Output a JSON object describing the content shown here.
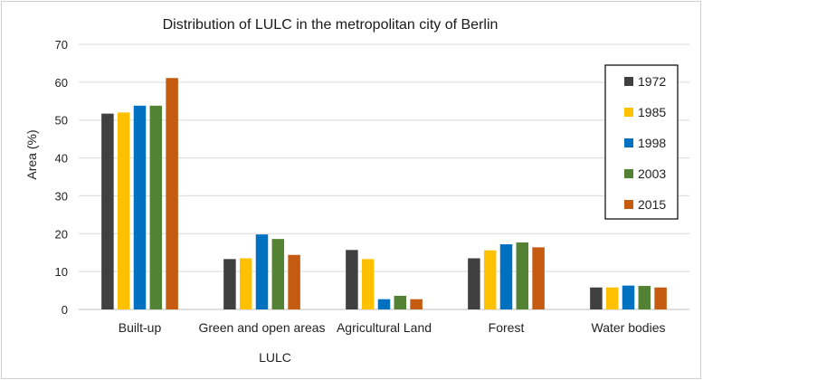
{
  "chart_data": {
    "type": "bar",
    "title": "Distribution of LULC in the metropolitan city of Berlin",
    "xlabel": "LULC",
    "ylabel": "Area (%)",
    "ylim": [
      0,
      70
    ],
    "yticks": [
      0,
      10,
      20,
      30,
      40,
      50,
      60,
      70
    ],
    "grid": true,
    "legend_position": "right",
    "categories": [
      "Built-up",
      "Green and open areas",
      "Agricultural Land",
      "Forest",
      "Water bodies"
    ],
    "series": [
      {
        "name": "1972",
        "color": "#404040",
        "values": [
          51.7,
          13.3,
          15.7,
          13.5,
          5.8
        ]
      },
      {
        "name": "1985",
        "color": "#ffc000",
        "values": [
          52.0,
          13.5,
          13.3,
          15.6,
          5.8
        ]
      },
      {
        "name": "1998",
        "color": "#0070c0",
        "values": [
          53.8,
          19.8,
          2.7,
          17.2,
          6.3
        ]
      },
      {
        "name": "2003",
        "color": "#548235",
        "values": [
          53.8,
          18.6,
          3.6,
          17.7,
          6.2
        ]
      },
      {
        "name": "2015",
        "color": "#c55a11",
        "values": [
          61.1,
          14.4,
          2.7,
          16.4,
          5.8
        ]
      }
    ]
  }
}
